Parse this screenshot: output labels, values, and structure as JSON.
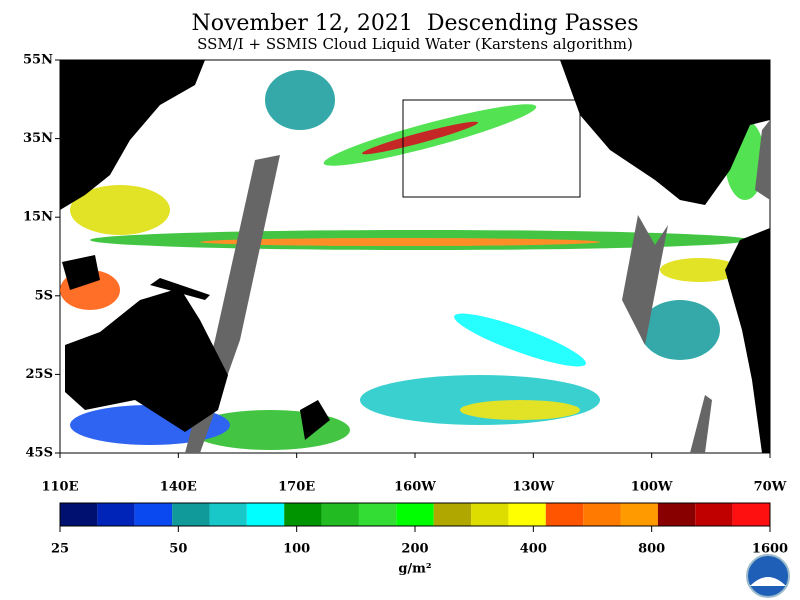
{
  "header": {
    "title": "November 12, 2021  Descending Passes",
    "subtitle": "SSM/I + SSMIS Cloud Liquid Water (Karstens algorithm)"
  },
  "map": {
    "lat_labels": [
      "55N",
      "35N",
      "15N",
      "5S",
      "25S",
      "45S"
    ],
    "lon_labels": [
      "110E",
      "140E",
      "170E",
      "160W",
      "130W",
      "100W",
      "70W"
    ]
  },
  "colorbar": {
    "colors": [
      "#001070",
      "#0024b8",
      "#0a48f0",
      "#119a9a",
      "#18c8c8",
      "#00ffff",
      "#009400",
      "#22bb22",
      "#33dd33",
      "#00ff00",
      "#b0a800",
      "#dddd00",
      "#ffff00",
      "#ff5500",
      "#ff7a00",
      "#ff9a00",
      "#880000",
      "#c00000",
      "#ff1010"
    ],
    "labels": [
      "25",
      "50",
      "100",
      "200",
      "400",
      "800",
      "1600"
    ],
    "unit": "g/m²"
  }
}
